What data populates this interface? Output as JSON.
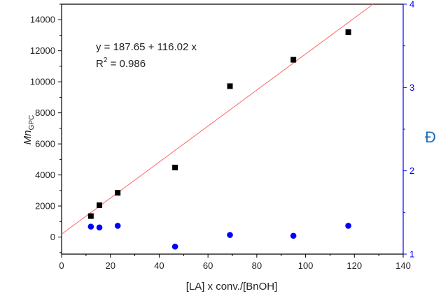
{
  "chart_data": {
    "type": "scatter",
    "x": [
      12,
      15.5,
      23,
      46.5,
      69,
      95,
      117.5
    ],
    "series": [
      {
        "axis": "left",
        "marker": "square",
        "color": "#000000",
        "values": [
          1350,
          2050,
          2850,
          4480,
          9720,
          11420,
          13200
        ]
      },
      {
        "axis": "right",
        "marker": "circle",
        "color": "#0000ff",
        "values": [
          1.33,
          1.32,
          1.34,
          1.09,
          1.23,
          1.22,
          1.34
        ]
      }
    ],
    "fit_line": {
      "color": "#ff6666",
      "intercept": 187.65,
      "slope": 116.02,
      "equation_label": "y = 187.65 + 116.02 x",
      "r2_prefix": "R",
      "r2_exponent": "2",
      "r2_value": " = 0.986"
    },
    "xlabel": "[LA] x conv./[BnOH]",
    "ylabel_main": "Mn",
    "ylabel_sub": "GPC",
    "y2label": "Đ",
    "xlim": [
      0,
      140
    ],
    "ylim": [
      -1100,
      15000
    ],
    "y2lim": [
      1,
      4
    ],
    "xticks": [
      "0",
      "20",
      "40",
      "60",
      "80",
      "100",
      "120",
      "140"
    ],
    "yticks": [
      "0",
      "2000",
      "4000",
      "6000",
      "8000",
      "10000",
      "12000",
      "14000"
    ],
    "y2ticks": [
      "1",
      "2",
      "3",
      "4"
    ],
    "axis_colors": {
      "left": "#000000",
      "right": "#0000ff"
    },
    "grid": false,
    "legend": "none"
  }
}
